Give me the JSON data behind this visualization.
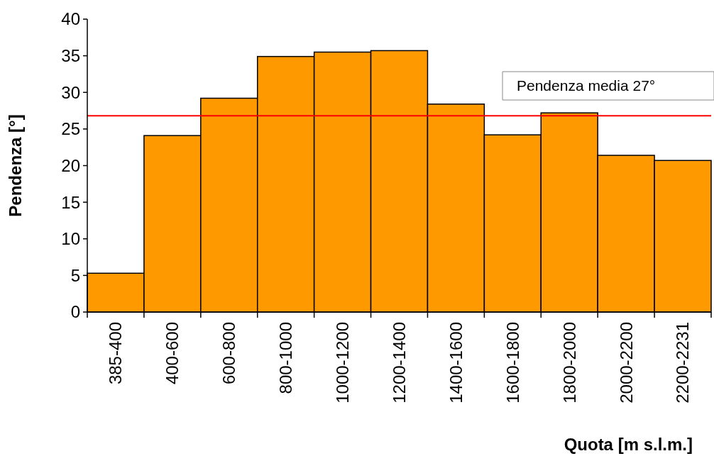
{
  "chart_data": {
    "type": "bar",
    "xlabel": "Quota [m s.l.m.]",
    "ylabel": "Pendenza [°]",
    "categories": [
      "385-400",
      "400-600",
      "600-800",
      "800-1000",
      "1000-1200",
      "1200-1400",
      "1400-1600",
      "1600-1800",
      "1800-2000",
      "2000-2200",
      "2200-2231"
    ],
    "values": [
      5.3,
      24.1,
      29.2,
      34.9,
      35.5,
      35.7,
      28.4,
      24.2,
      27.2,
      21.4,
      20.7
    ],
    "color": "#ff9900",
    "ylim": [
      0,
      40
    ],
    "yticks": [
      0,
      5,
      10,
      15,
      20,
      25,
      30,
      35,
      40
    ],
    "ref_lines": [
      {
        "axis": "y",
        "value": 26.8,
        "label": "Pendenza media 27°",
        "color": "#ff0000"
      }
    ]
  }
}
